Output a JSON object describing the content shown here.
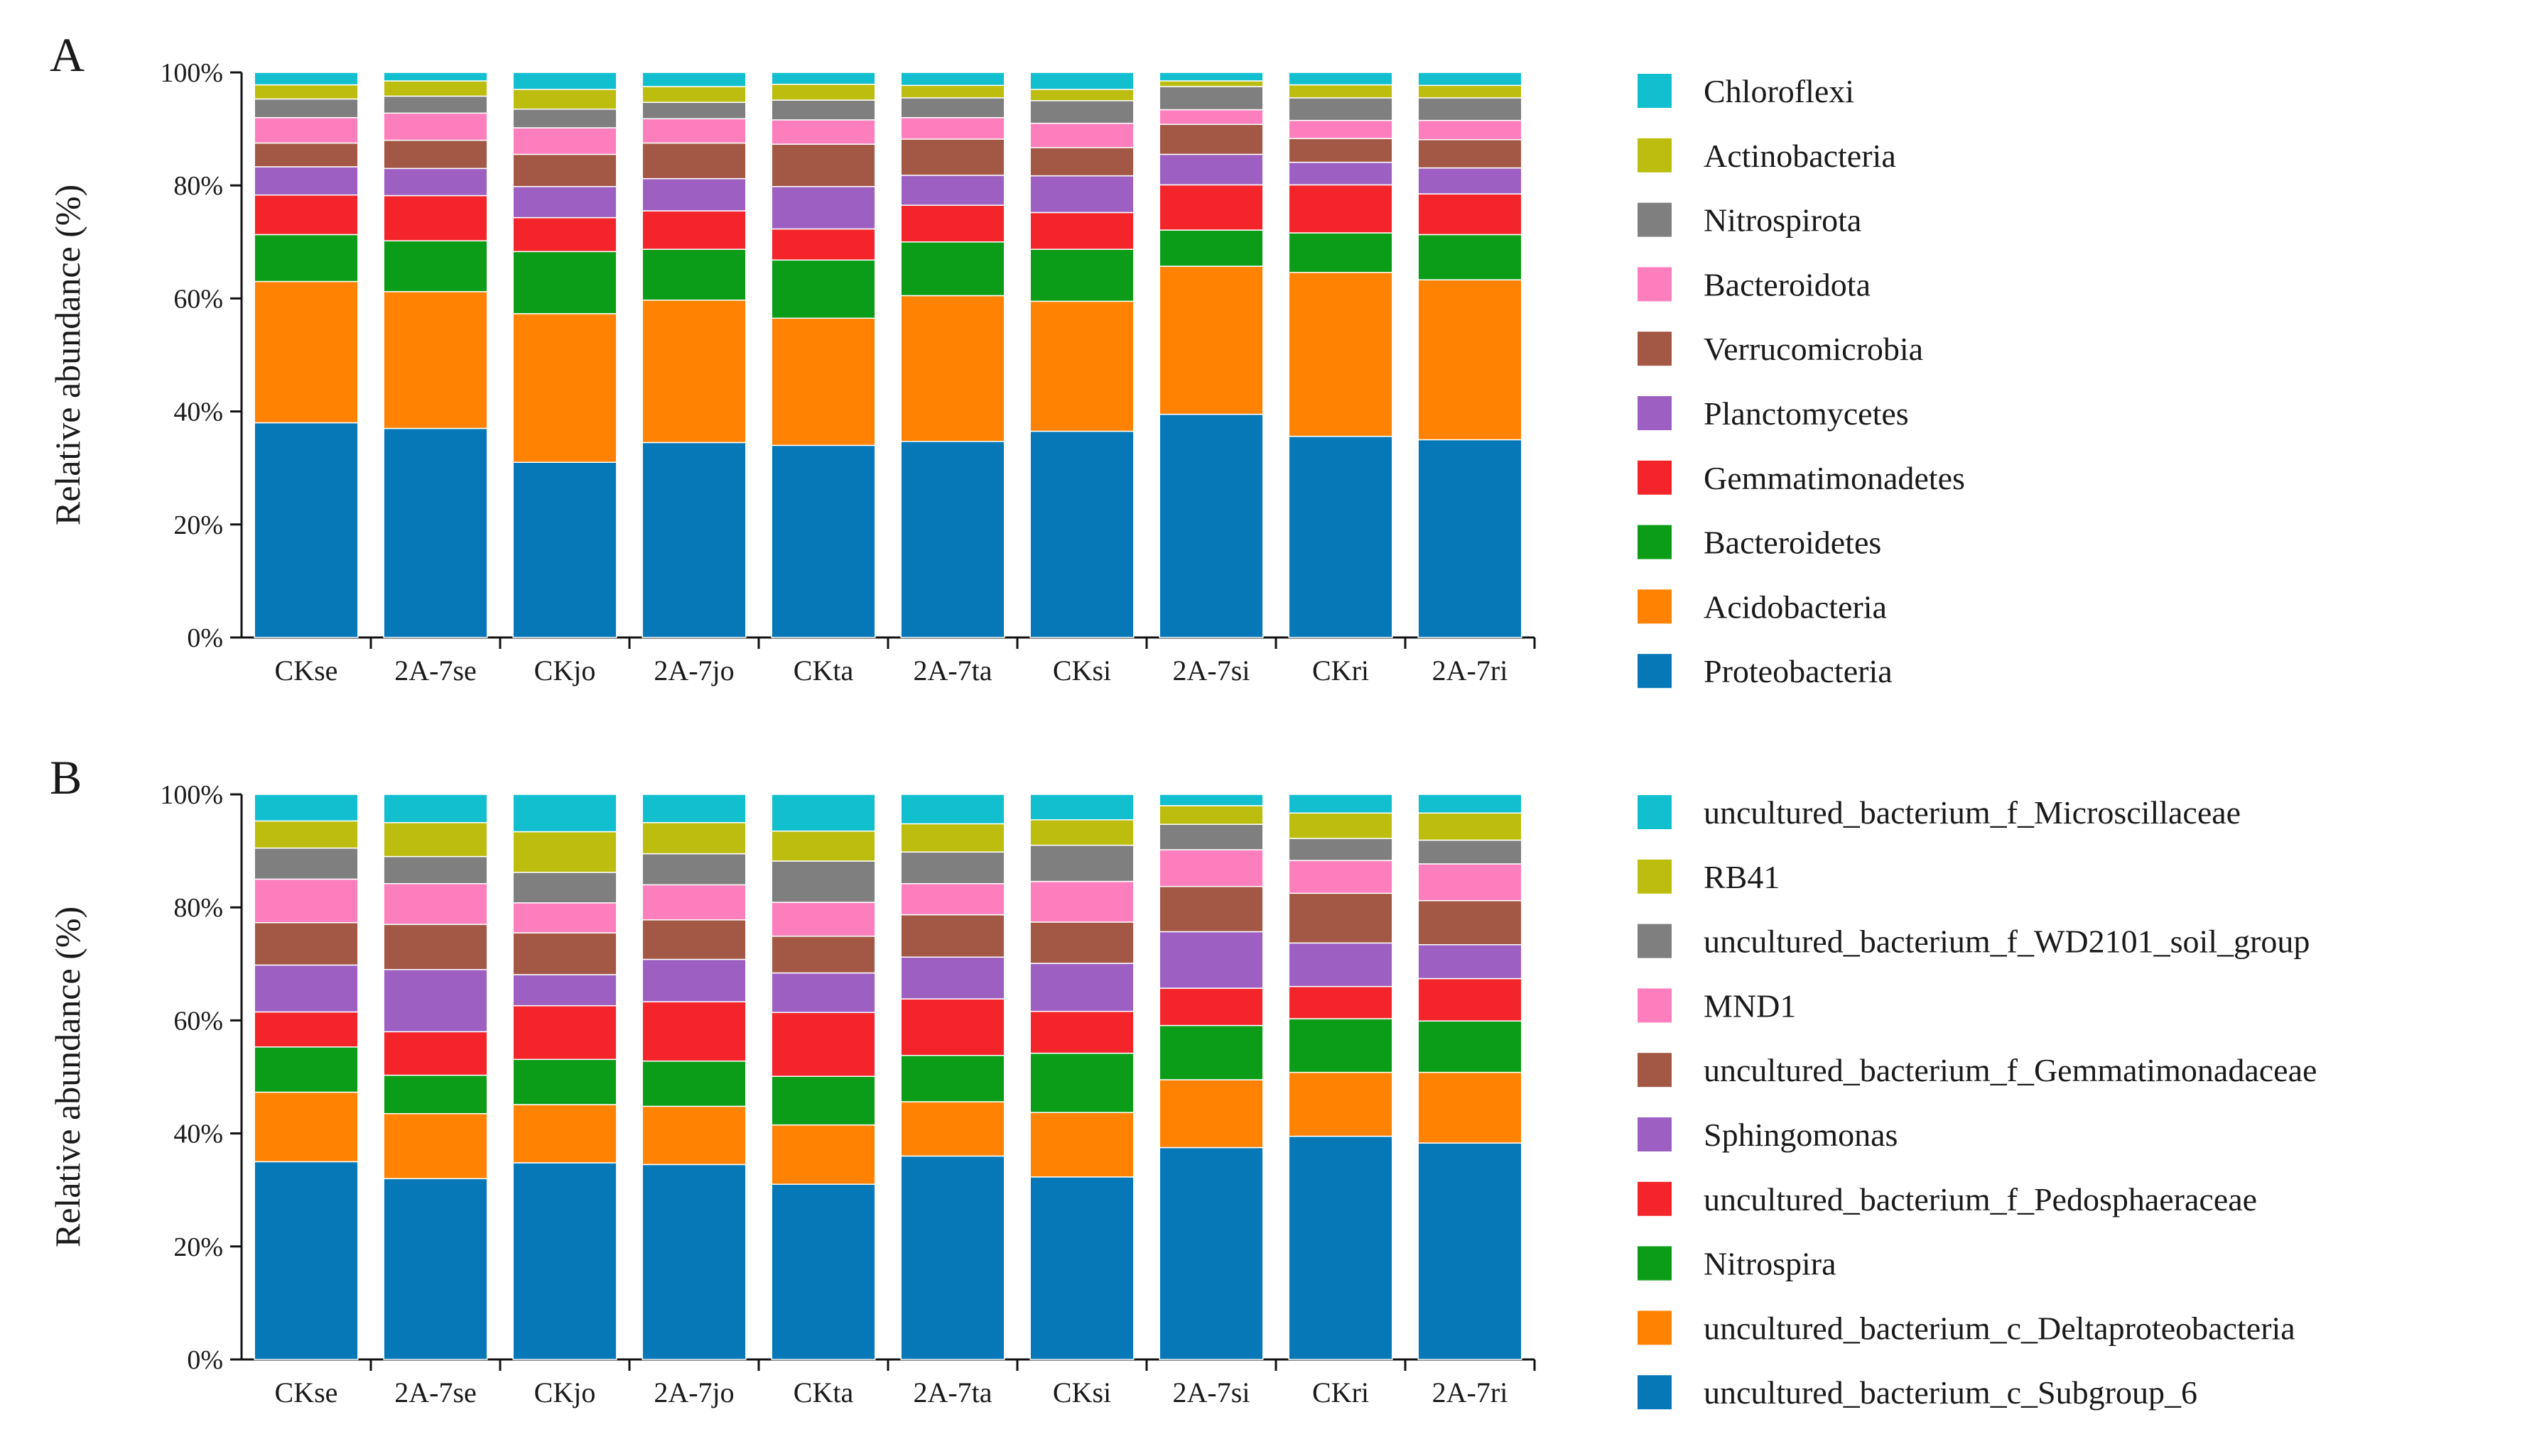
{
  "figure": {
    "panel_labels": [
      "A",
      "B"
    ]
  },
  "chart_data": [
    {
      "type": "bar",
      "stacked": true,
      "panel": "A",
      "title": "",
      "xlabel": "",
      "ylabel": "Relative abundance (%)",
      "ylim": [
        0,
        100
      ],
      "yticks": [
        "0%",
        "20%",
        "40%",
        "60%",
        "80%",
        "100%"
      ],
      "categories": [
        "CKse",
        "2A-7se",
        "CKjo",
        "2A-7jo",
        "CKta",
        "2A-7ta",
        "CKsi",
        "2A-7si",
        "CKri",
        "2A-7ri"
      ],
      "series": [
        {
          "name": "Proteobacteria",
          "color": "#0678b8",
          "values": [
            38.0,
            37.0,
            31.0,
            34.5,
            34.0,
            34.7,
            36.5,
            39.5,
            35.6,
            35.0
          ]
        },
        {
          "name": "Acidobacteria",
          "color": "#ff8202",
          "values": [
            25.0,
            24.2,
            26.3,
            25.2,
            22.5,
            25.8,
            23.0,
            26.2,
            29.0,
            28.3
          ]
        },
        {
          "name": "Bacteroidetes",
          "color": "#0c9d18",
          "values": [
            8.3,
            9.0,
            11.0,
            9.0,
            10.3,
            9.5,
            9.2,
            6.4,
            7.0,
            8.0
          ]
        },
        {
          "name": "Gemmatimonadetes",
          "color": "#f3252a",
          "values": [
            7.0,
            8.0,
            6.0,
            6.8,
            5.5,
            6.5,
            6.5,
            8.0,
            8.5,
            7.2
          ]
        },
        {
          "name": "Planctomycetes",
          "color": "#9d60c2",
          "values": [
            5.0,
            4.8,
            5.5,
            5.7,
            7.5,
            5.3,
            6.5,
            5.4,
            4.0,
            4.6
          ]
        },
        {
          "name": "Verrucomicrobia",
          "color": "#a35845",
          "values": [
            4.2,
            5.0,
            5.7,
            6.3,
            7.5,
            6.4,
            5.0,
            5.3,
            4.2,
            5.0
          ]
        },
        {
          "name": "Bacteroidota",
          "color": "#fd7ebd",
          "values": [
            4.5,
            4.8,
            4.7,
            4.3,
            4.3,
            3.8,
            4.3,
            2.6,
            3.2,
            3.4
          ]
        },
        {
          "name": "Nitrospirota",
          "color": "#7f7f7f",
          "values": [
            3.3,
            3.0,
            3.3,
            2.9,
            3.5,
            3.5,
            4.0,
            4.1,
            4.0,
            4.0
          ]
        },
        {
          "name": "Actinobacteria",
          "color": "#bdbd0f",
          "values": [
            2.5,
            2.7,
            3.5,
            2.8,
            2.8,
            2.2,
            2.0,
            1.0,
            2.3,
            2.2
          ]
        },
        {
          "name": "Chloroflexi",
          "color": "#12bfcf",
          "values": [
            2.2,
            1.5,
            3.0,
            2.5,
            2.1,
            2.3,
            3.0,
            1.5,
            2.2,
            2.3
          ]
        }
      ]
    },
    {
      "type": "bar",
      "stacked": true,
      "panel": "B",
      "title": "",
      "xlabel": "",
      "ylabel": "Relative abundance (%)",
      "ylim": [
        0,
        100
      ],
      "yticks": [
        "0%",
        "20%",
        "40%",
        "60%",
        "80%",
        "100%"
      ],
      "categories": [
        "CKse",
        "2A-7se",
        "CKjo",
        "2A-7jo",
        "CKta",
        "2A-7ta",
        "CKsi",
        "2A-7si",
        "CKri",
        "2A-7ri"
      ],
      "series": [
        {
          "name": "uncultured_bacterium_c_Subgroup_6",
          "color": "#0678b8",
          "values": [
            35.0,
            32.0,
            34.8,
            34.5,
            31.0,
            36.0,
            32.3,
            37.5,
            39.5,
            38.3
          ]
        },
        {
          "name": "uncultured_bacterium_c_Deltaproteobacteria",
          "color": "#ff8202",
          "values": [
            12.3,
            11.5,
            10.3,
            10.3,
            10.5,
            9.6,
            11.4,
            12.0,
            11.3,
            12.5
          ]
        },
        {
          "name": "Nitrospira",
          "color": "#0c9d18",
          "values": [
            8.0,
            6.8,
            8.0,
            8.0,
            8.6,
            8.2,
            10.5,
            9.6,
            9.5,
            9.1
          ]
        },
        {
          "name": "uncultured_bacterium_f_Pedosphaeraceae",
          "color": "#f3252a",
          "values": [
            6.2,
            7.7,
            9.5,
            10.5,
            11.3,
            10.0,
            7.4,
            6.6,
            5.7,
            7.5
          ]
        },
        {
          "name": "Sphingomonas",
          "color": "#9d60c2",
          "values": [
            8.3,
            11.0,
            5.5,
            7.5,
            7.0,
            7.4,
            8.5,
            10.0,
            7.7,
            6.0
          ]
        },
        {
          "name": "uncultured_bacterium_f_Gemmatimonadaceae",
          "color": "#a35845",
          "values": [
            7.5,
            8.0,
            7.4,
            7.0,
            6.5,
            7.5,
            7.3,
            8.0,
            8.8,
            7.8
          ]
        },
        {
          "name": "MND1",
          "color": "#fd7ebd",
          "values": [
            7.7,
            7.2,
            5.3,
            6.2,
            6.0,
            5.5,
            7.2,
            6.5,
            5.8,
            6.5
          ]
        },
        {
          "name": "uncultured_bacterium_f_WD2101_soil_group",
          "color": "#7f7f7f",
          "values": [
            5.5,
            4.8,
            5.4,
            5.5,
            7.3,
            5.6,
            6.4,
            4.5,
            3.9,
            4.2
          ]
        },
        {
          "name": "RB41",
          "color": "#bdbd0f",
          "values": [
            4.8,
            6.0,
            7.2,
            5.5,
            5.3,
            5.0,
            4.5,
            3.3,
            4.5,
            4.8
          ]
        },
        {
          "name": "uncultured_bacterium_f_Microscillaceae",
          "color": "#12bfcf",
          "values": [
            4.7,
            5.0,
            6.6,
            5.0,
            6.5,
            5.2,
            4.5,
            2.0,
            3.3,
            3.3
          ]
        }
      ]
    }
  ]
}
